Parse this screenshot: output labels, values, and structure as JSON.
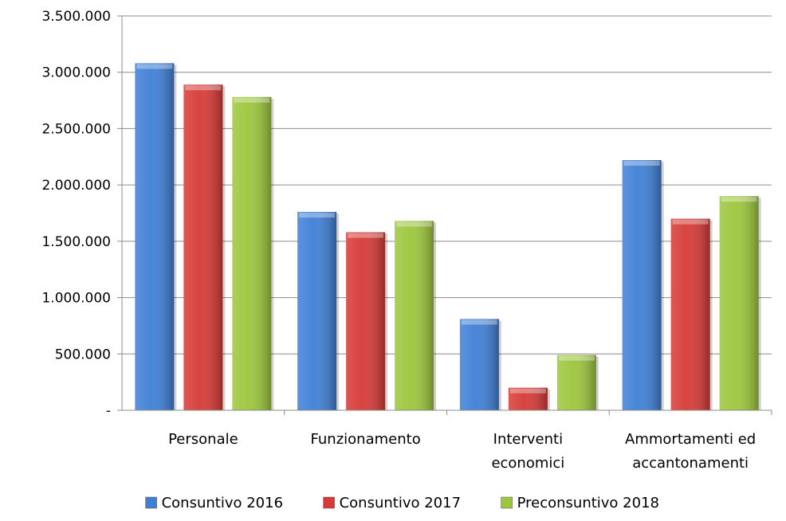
{
  "chart_data": {
    "type": "bar",
    "title": "",
    "xlabel": "",
    "ylabel": "",
    "ylim": [
      0,
      3500000
    ],
    "yticks": [
      {
        "value": 0,
        "label": "-"
      },
      {
        "value": 500000,
        "label": "500.000"
      },
      {
        "value": 1000000,
        "label": "1.000.000"
      },
      {
        "value": 1500000,
        "label": "1.500.000"
      },
      {
        "value": 2000000,
        "label": "2.000.000"
      },
      {
        "value": 2500000,
        "label": "2.500.000"
      },
      {
        "value": 3000000,
        "label": "3.000.000"
      },
      {
        "value": 3500000,
        "label": "3.500.000"
      }
    ],
    "grid": true,
    "legend_position": "bottom",
    "categories": [
      [
        "Personale"
      ],
      [
        "Funzionamento"
      ],
      [
        "Interventi",
        "economici"
      ],
      [
        "Ammortamenti ed",
        "accantonamenti"
      ]
    ],
    "series": [
      {
        "name": "Consuntivo 2016",
        "color": "#3f7fd6",
        "values": [
          3080000,
          1760000,
          810000,
          2220000
        ]
      },
      {
        "name": "Consuntivo 2017",
        "color": "#d63a36",
        "values": [
          2890000,
          1580000,
          200000,
          1700000
        ]
      },
      {
        "name": "Preconsuntivo 2018",
        "color": "#9cc63c",
        "values": [
          2780000,
          1680000,
          490000,
          1900000
        ]
      }
    ]
  }
}
